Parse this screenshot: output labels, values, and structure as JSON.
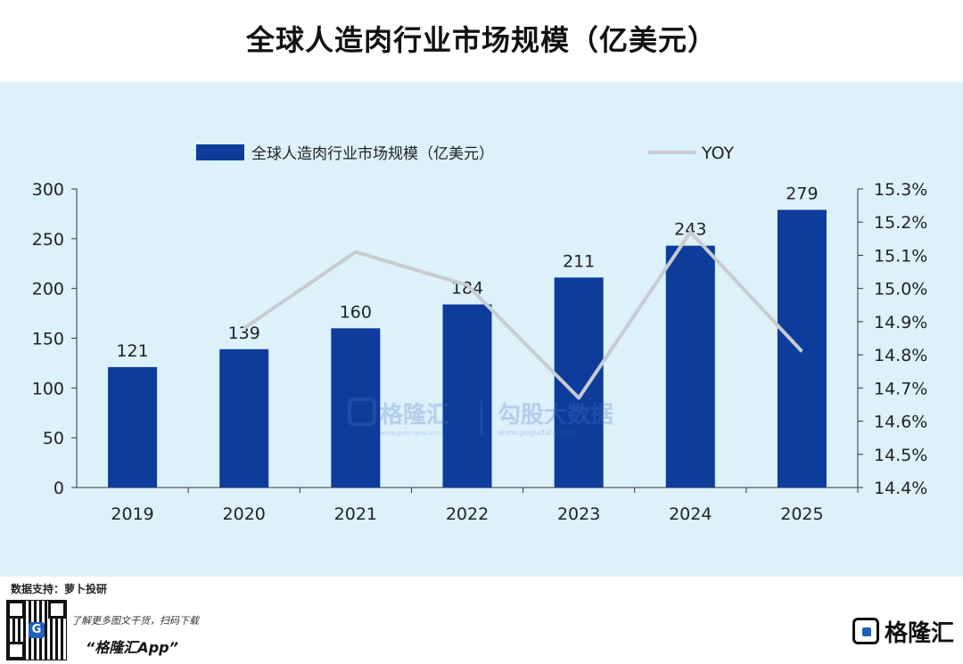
{
  "header": {
    "title": "全球人造肉行业市场规模（亿美元）"
  },
  "chart_data": {
    "type": "bar",
    "categories": [
      "2019",
      "2020",
      "2021",
      "2022",
      "2023",
      "2024",
      "2025"
    ],
    "values": [
      121,
      139,
      160,
      184,
      211,
      243,
      279
    ],
    "bar_series_name": "全球人造肉行业市场规模（亿美元）",
    "line_series": {
      "name": "YOY",
      "x": [
        "2020",
        "2021",
        "2022",
        "2023",
        "2024",
        "2025"
      ],
      "values": [
        14.88,
        15.11,
        15.01,
        14.67,
        15.17,
        14.81
      ]
    },
    "y_left": {
      "lim": [
        0,
        300
      ],
      "ticks": [
        "300",
        "250",
        "200",
        "150",
        "100",
        "50",
        "0"
      ]
    },
    "y_right": {
      "lim": [
        14.4,
        15.3
      ],
      "ticks": [
        "15.3%",
        "15.2%",
        "15.1%",
        "15.0%",
        "14.9%",
        "14.8%",
        "14.7%",
        "14.6%",
        "14.5%",
        "14.4%"
      ]
    },
    "colors": {
      "bar": "#0d3c9b",
      "line": "#c8cbcf",
      "background": "#ddf1fb"
    },
    "legend_position": "top"
  },
  "watermark": {
    "brand": "格隆汇",
    "partner": "勾股大数据",
    "url1": "www.gelonghui.com",
    "url2": "www.gogudata.com"
  },
  "footer": {
    "source": "数据支持：萝卜投研",
    "promo_line": "了解更多图文干货，扫码下载",
    "app_name": "“格隆汇App”",
    "brand": "格隆汇",
    "brand_url": "www.gelonghui.com"
  }
}
